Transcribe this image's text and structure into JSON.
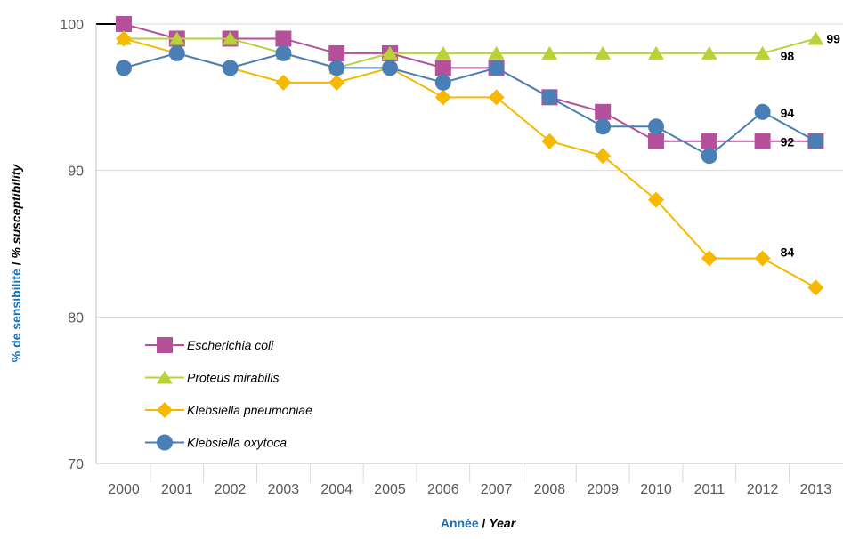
{
  "chart_data": {
    "type": "line",
    "x": [
      "2000",
      "2001",
      "2002",
      "2003",
      "2004",
      "2005",
      "2006",
      "2007",
      "2008",
      "2009",
      "2010",
      "2011",
      "2012",
      "2013"
    ],
    "ylim": [
      70,
      100
    ],
    "yticks": [
      "70",
      "80",
      "90",
      "100"
    ],
    "grid": true,
    "legend_position": "bottom-left",
    "xlabel": {
      "fr": "Année",
      "sep": " / ",
      "en": "Year"
    },
    "ylabel": {
      "fr": "% de sensibilité",
      "sep": " / ",
      "en": "% susceptibility"
    },
    "series": [
      {
        "name": "Escherichia coli",
        "color": "#B5519B",
        "marker": "square",
        "values": [
          100,
          99,
          99,
          99,
          98,
          98,
          97,
          97,
          95,
          94,
          92,
          92,
          92,
          92
        ]
      },
      {
        "name": "Proteus mirabilis",
        "color": "#B9D23A",
        "marker": "triangle",
        "values": [
          99,
          99,
          99,
          98,
          97,
          98,
          98,
          98,
          98,
          98,
          98,
          98,
          98,
          99
        ]
      },
      {
        "name": "Klebsiella pneumoniae",
        "color": "#F7B800",
        "marker": "diamond",
        "values": [
          99,
          98,
          97,
          96,
          96,
          97,
          95,
          95,
          92,
          91,
          88,
          84,
          84,
          82
        ]
      },
      {
        "name": "Klebsiella oxytoca",
        "color": "#4A7FB5",
        "marker": "circle",
        "values": [
          97,
          98,
          97,
          98,
          97,
          97,
          96,
          97,
          95,
          93,
          93,
          91,
          94,
          92
        ]
      }
    ],
    "annotations": [
      {
        "text": "99",
        "series": "Proteus mirabilis",
        "x": "2013",
        "y": 99
      },
      {
        "text": "98",
        "series": "Proteus mirabilis",
        "x": "2012",
        "y": 98
      },
      {
        "text": "94",
        "series": "Klebsiella oxytoca",
        "x": "2012",
        "y": 94
      },
      {
        "text": "92",
        "series": "Escherichia coli",
        "x": "2012",
        "y": 92
      },
      {
        "text": "84",
        "series": "Klebsiella pneumoniae",
        "x": "2012",
        "y": 84
      }
    ],
    "colors": {
      "axis_title": "#1F6FB2",
      "grid": "#D9D9D9",
      "tick_text": "#595959"
    }
  }
}
